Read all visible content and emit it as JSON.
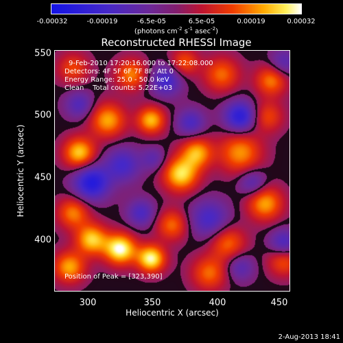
{
  "colorbar": {
    "ticks": [
      "-0.00032",
      "-0.00019",
      "-6.5e-05",
      "6.5e-05",
      "0.00019",
      "0.00032"
    ],
    "units_text": "(photons cm",
    "units_exp1": "-2",
    "units_mid": " s",
    "units_exp2": "-1",
    "units_end": " asec",
    "units_exp3": "-2",
    "units_close": ")",
    "range": [
      -0.00032,
      0.00032
    ]
  },
  "chart_data": {
    "type": "heatmap",
    "title": "Reconstructed RHESSI Image",
    "xlabel": "Heliocentric X (arcsec)",
    "ylabel": "Heliocentric Y (arcsec)",
    "xlim": [
      270,
      460
    ],
    "ylim": [
      355,
      555
    ],
    "xticks": [
      "300",
      "350",
      "400",
      "450"
    ],
    "yticks": [
      "400",
      "450",
      "500",
      "550"
    ],
    "peak": [
      323,
      390
    ],
    "colormap": "RHESSI red-temperature (blue → purple → red → yellow → white)",
    "blobs_description": "Qualitative reconstruction of intensity pattern",
    "blobs": [
      {
        "x": 323,
        "y": 390,
        "v": 1.0,
        "s": 9
      },
      {
        "x": 348,
        "y": 382,
        "v": 0.95,
        "s": 8
      },
      {
        "x": 300,
        "y": 398,
        "v": 0.8,
        "s": 9
      },
      {
        "x": 372,
        "y": 452,
        "v": 0.85,
        "s": 10
      },
      {
        "x": 385,
        "y": 470,
        "v": 0.7,
        "s": 9
      },
      {
        "x": 420,
        "y": 470,
        "v": 0.65,
        "s": 12
      },
      {
        "x": 440,
        "y": 428,
        "v": 0.7,
        "s": 10
      },
      {
        "x": 290,
        "y": 470,
        "v": 0.8,
        "s": 9
      },
      {
        "x": 313,
        "y": 497,
        "v": 0.7,
        "s": 10
      },
      {
        "x": 348,
        "y": 497,
        "v": 0.75,
        "s": 8
      },
      {
        "x": 332,
        "y": 535,
        "v": 0.6,
        "s": 9
      },
      {
        "x": 405,
        "y": 535,
        "v": 0.55,
        "s": 10
      },
      {
        "x": 445,
        "y": 530,
        "v": 0.6,
        "s": 9
      },
      {
        "x": 285,
        "y": 420,
        "v": 0.6,
        "s": 9
      },
      {
        "x": 365,
        "y": 410,
        "v": 0.55,
        "s": 9
      },
      {
        "x": 410,
        "y": 395,
        "v": 0.55,
        "s": 10
      },
      {
        "x": 455,
        "y": 380,
        "v": 0.5,
        "s": 9
      },
      {
        "x": 282,
        "y": 375,
        "v": 0.7,
        "s": 9
      },
      {
        "x": 395,
        "y": 370,
        "v": 0.55,
        "s": 10
      },
      {
        "x": 442,
        "y": 500,
        "v": 0.45,
        "s": 9
      },
      {
        "x": 375,
        "y": 545,
        "v": 0.5,
        "s": 8
      },
      {
        "x": 285,
        "y": 540,
        "v": 0.45,
        "s": 9
      },
      {
        "x": 300,
        "y": 445,
        "v": -0.85,
        "s": 10
      },
      {
        "x": 325,
        "y": 460,
        "v": -0.55,
        "s": 10
      },
      {
        "x": 420,
        "y": 500,
        "v": -0.8,
        "s": 9
      },
      {
        "x": 360,
        "y": 530,
        "v": -0.6,
        "s": 9
      },
      {
        "x": 395,
        "y": 415,
        "v": -0.55,
        "s": 11
      },
      {
        "x": 340,
        "y": 420,
        "v": -0.5,
        "s": 8
      },
      {
        "x": 430,
        "y": 445,
        "v": -0.45,
        "s": 8
      },
      {
        "x": 455,
        "y": 395,
        "v": -0.55,
        "s": 8
      },
      {
        "x": 290,
        "y": 510,
        "v": -0.45,
        "s": 8
      },
      {
        "x": 380,
        "y": 495,
        "v": -0.5,
        "s": 8
      },
      {
        "x": 420,
        "y": 375,
        "v": -0.4,
        "s": 8
      },
      {
        "x": 350,
        "y": 465,
        "v": -0.35,
        "s": 7
      },
      {
        "x": 455,
        "y": 545,
        "v": -0.4,
        "s": 8
      }
    ]
  },
  "annotations": {
    "time": "9-Feb-2010 17:20:16.000 to 17:22:08.000",
    "detectors": "Detectors: 4F 5F 6F 7F 8F, Att 0",
    "energy": "Energy Range: 25.0 - 50.0 keV",
    "clean": "Clean    Total counts: 5.22E+03",
    "peak_label": "Position of Peak = [323,390]"
  },
  "timestamp": "2-Aug-2013 18:41"
}
